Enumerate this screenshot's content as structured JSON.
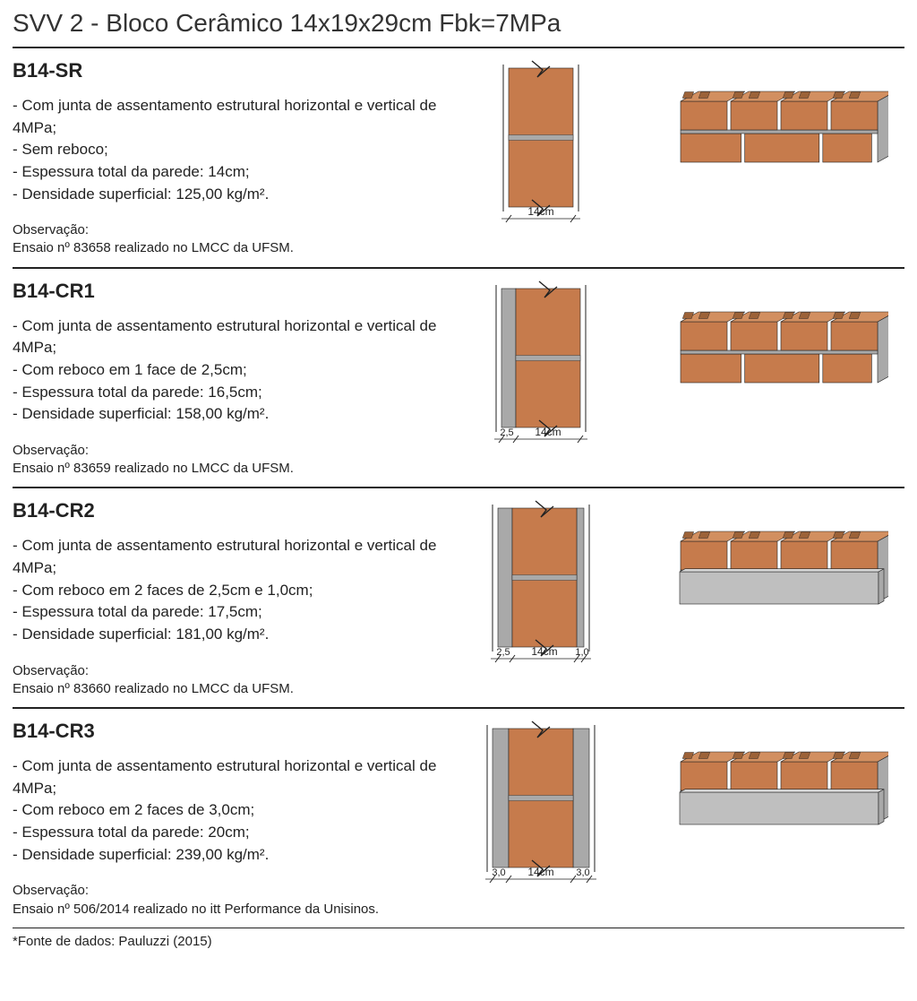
{
  "page_title": "SVV 2 - Bloco Cerâmico 14x19x29cm Fbk=7MPa",
  "colors": {
    "brick_fill": "#c67b4c",
    "brick_top": "#d28f60",
    "mortar": "#a9a9a9",
    "render_face": "#bfbfbf",
    "line": "#222222",
    "brick_stroke": "#8a5a35"
  },
  "sections": [
    {
      "code": "B14-SR",
      "bullets": [
        "- Com junta de assentamento estrutural horizontal e vertical de 4MPa;",
        "- Sem reboco;",
        "- Espessura total da parede: 14cm;",
        "- Densidade superficial: 125,00 kg/m²."
      ],
      "obs_label": "Observação:",
      "obs_text": "Ensaio nº 83658 realizado no LMCC da UFSM.",
      "cross": {
        "render_left": false,
        "render_right": false,
        "left_label": "",
        "center_label": "14cm",
        "right_label": "",
        "left_w": 0,
        "right_w": 0
      },
      "iso_render": "none"
    },
    {
      "code": "B14-CR1",
      "bullets": [
        "- Com junta de assentamento estrutural horizontal e vertical de 4MPa;",
        "- Com reboco em 1 face de 2,5cm;",
        "- Espessura total da parede: 16,5cm;",
        "- Densidade superficial: 158,00 kg/m²."
      ],
      "obs_label": "Observação:",
      "obs_text": "Ensaio nº 83659 realizado no LMCC da UFSM.",
      "cross": {
        "render_left": true,
        "render_right": false,
        "left_label": "2,5",
        "center_label": "14cm",
        "right_label": "",
        "left_w": 16,
        "right_w": 0
      },
      "iso_render": "none"
    },
    {
      "code": "B14-CR2",
      "bullets": [
        "- Com junta de assentamento estrutural horizontal e vertical de 4MPa;",
        "- Com reboco em 2 faces de 2,5cm e 1,0cm;",
        "- Espessura total da parede: 17,5cm;",
        "- Densidade superficial: 181,00 kg/m²."
      ],
      "obs_label": "Observação:",
      "obs_text": "Ensaio nº 83660 realizado no LMCC da UFSM.",
      "cross": {
        "render_left": true,
        "render_right": true,
        "left_label": "2,5",
        "center_label": "14cm",
        "right_label": "1,0",
        "left_w": 16,
        "right_w": 8
      },
      "iso_render": "front"
    },
    {
      "code": "B14-CR3",
      "bullets": [
        "- Com junta de assentamento estrutural horizontal e vertical de 4MPa;",
        "- Com reboco em 2 faces de 3,0cm;",
        "- Espessura total da parede: 20cm;",
        "- Densidade superficial: 239,00 kg/m²."
      ],
      "obs_label": "Observação:",
      "obs_text": "Ensaio nº 506/2014 realizado no itt Performance da Unisinos.",
      "cross": {
        "render_left": true,
        "render_right": true,
        "left_label": "3,0",
        "center_label": "14cm",
        "right_label": "3,0",
        "left_w": 18,
        "right_w": 18
      },
      "iso_render": "front"
    }
  ],
  "footnote": "*Fonte de dados: Pauluzzi (2015)"
}
